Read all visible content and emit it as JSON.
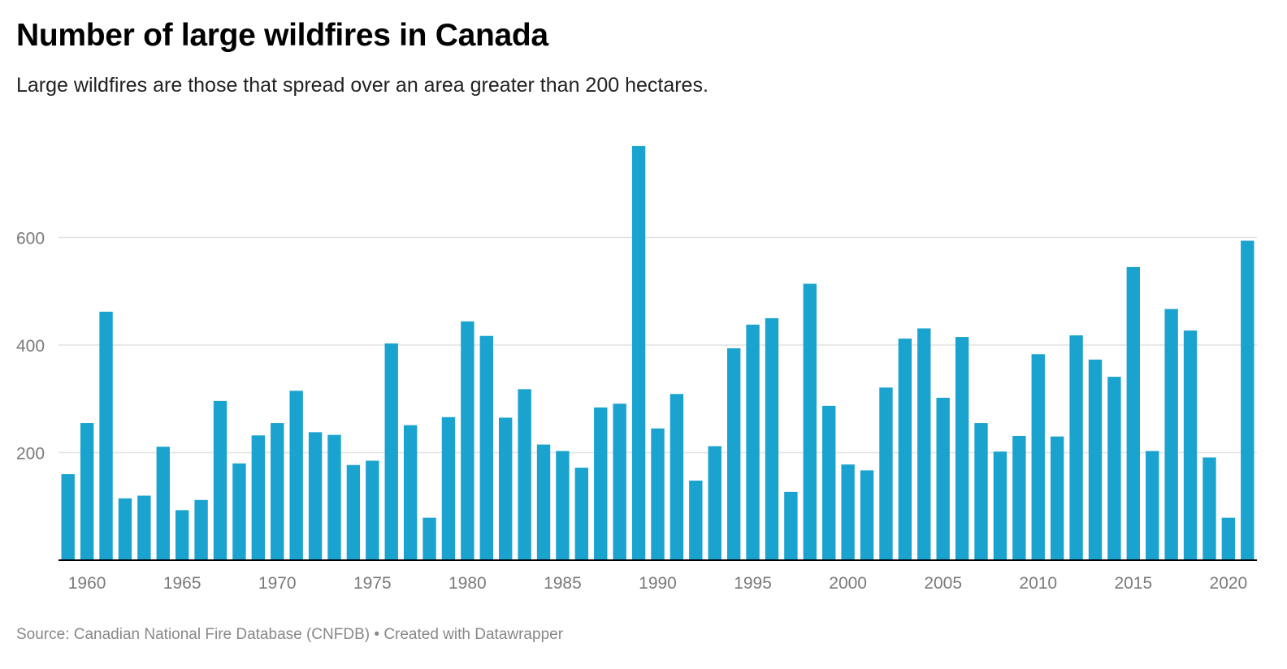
{
  "title": "Number of large wildfires in Canada",
  "subtitle": "Large wildfires are those that spread over an area greater than 200 hectares.",
  "footer": {
    "source": "Source: Canadian National Fire Database (CNFDB)",
    "separator": "•",
    "credit": "Created with Datawrapper"
  },
  "colors": {
    "bar": "#1ba3d0",
    "gridline": "#e2e2e2",
    "baseline": "#000000",
    "tick_label": "#7a7a7a"
  },
  "chart_data": {
    "type": "bar",
    "title": "Number of large wildfires in Canada",
    "subtitle": "Large wildfires are those that spread over an area greater than 200 hectares.",
    "xlabel": "",
    "ylabel": "",
    "ylim": [
      0,
      775
    ],
    "grid": true,
    "y_ticks": [
      200,
      400,
      600
    ],
    "x_tick_labels": [
      "1960",
      "1965",
      "1970",
      "1975",
      "1980",
      "1985",
      "1990",
      "1995",
      "2000",
      "2005",
      "2010",
      "2015",
      "2020"
    ],
    "categories": [
      1959,
      1960,
      1961,
      1962,
      1963,
      1964,
      1965,
      1966,
      1967,
      1968,
      1969,
      1970,
      1971,
      1972,
      1973,
      1974,
      1975,
      1976,
      1977,
      1978,
      1979,
      1980,
      1981,
      1982,
      1983,
      1984,
      1985,
      1986,
      1987,
      1988,
      1989,
      1990,
      1991,
      1992,
      1993,
      1994,
      1995,
      1996,
      1997,
      1998,
      1999,
      2000,
      2001,
      2002,
      2003,
      2004,
      2005,
      2006,
      2007,
      2008,
      2009,
      2010,
      2011,
      2012,
      2013,
      2014,
      2015,
      2016,
      2017,
      2018,
      2019,
      2020,
      2021
    ],
    "values": [
      160,
      255,
      462,
      115,
      120,
      211,
      93,
      112,
      296,
      180,
      232,
      255,
      315,
      238,
      233,
      177,
      185,
      403,
      251,
      79,
      266,
      444,
      417,
      265,
      318,
      215,
      203,
      172,
      284,
      291,
      770,
      245,
      309,
      148,
      212,
      394,
      438,
      450,
      127,
      514,
      287,
      178,
      167,
      321,
      412,
      431,
      302,
      415,
      255,
      202,
      231,
      383,
      230,
      418,
      373,
      341,
      545,
      203,
      467,
      427,
      191,
      79,
      594
    ]
  }
}
